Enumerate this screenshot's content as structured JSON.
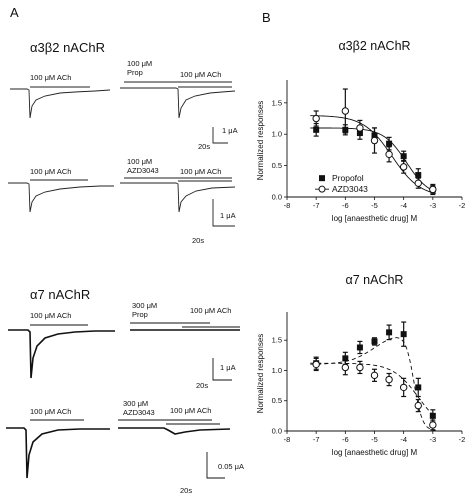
{
  "panel_labels": {
    "a": "A",
    "b": "B"
  },
  "traces": {
    "a3b2_title": "α3β2 nAChR",
    "a7_title": "α7 nAChR",
    "a3b2_prop": {
      "ach1": "100 μM ACh",
      "drug_line1": "100 μM",
      "drug_line2": "Prop",
      "ach2": "100 μM ACh",
      "scale_y": "1 μA",
      "scale_x": "20s"
    },
    "a3b2_azd": {
      "ach1": "100 μM ACh",
      "drug_line1": "100 μM",
      "drug_line2": "AZD3043",
      "ach2": "100 μM ACh",
      "scale_y": "1 μA",
      "scale_x": "20s"
    },
    "a7_prop": {
      "ach1": "100 μM ACh",
      "drug_line1": "300 μM",
      "drug_line2": "Prop",
      "ach2": "100 μM ACh",
      "scale_y": "1 μA",
      "scale_x": "20s"
    },
    "a7_azd": {
      "ach1": "100 μM ACh",
      "drug_line1": "300 μM",
      "drug_line2": "AZD3043",
      "ach2": "100 μM ACh",
      "scale_y": "0.05 μA",
      "scale_x": "20s"
    }
  },
  "chart_data": [
    {
      "type": "scatter",
      "title": "α3β2 nAChR",
      "xlabel": "log [anaesthetic drug] M",
      "ylabel": "Normalized responses",
      "xlim": [
        -8,
        -2
      ],
      "ylim": [
        0,
        1.8
      ],
      "xticks": [
        "-8",
        "-7",
        "-6",
        "-5",
        "-4",
        "-3",
        "-2"
      ],
      "yticks": [
        "0.0",
        "0.5",
        "1.0",
        "1.5"
      ],
      "legend": "bottom-left",
      "series": [
        {
          "name": "Propofol",
          "marker": "filled-square",
          "fit": "solid",
          "x": [
            -7,
            -6,
            -5.5,
            -5,
            -4.5,
            -4,
            -3.5,
            -3
          ],
          "y": [
            1.07,
            1.07,
            1.02,
            0.98,
            0.85,
            0.65,
            0.35,
            0.12
          ],
          "err": [
            0.1,
            0.08,
            0.1,
            0.12,
            0.1,
            0.08,
            0.1,
            0.08
          ]
        },
        {
          "name": "AZD3043",
          "marker": "open-circle",
          "fit": "solid",
          "x": [
            -7,
            -6,
            -5.5,
            -5,
            -4.5,
            -4,
            -3.5,
            -3
          ],
          "y": [
            1.25,
            1.37,
            1.1,
            0.9,
            0.68,
            0.48,
            0.22,
            0.12
          ],
          "err": [
            0.12,
            0.35,
            0.12,
            0.2,
            0.12,
            0.1,
            0.08,
            0.06
          ]
        }
      ]
    },
    {
      "type": "scatter",
      "title": "α7 nAChR",
      "xlabel": "log [anaesthetic drug] M",
      "ylabel": "Normalized responses",
      "xlim": [
        -8,
        -2
      ],
      "ylim": [
        0,
        1.9
      ],
      "xticks": [
        "-8",
        "-7",
        "-6",
        "-5",
        "-4",
        "-3",
        "-2"
      ],
      "yticks": [
        "0.0",
        "0.5",
        "1.0",
        "1.5"
      ],
      "series": [
        {
          "name": "Propofol",
          "marker": "filled-square",
          "fit": "dashed",
          "x": [
            -7,
            -6,
            -5.5,
            -5,
            -4.5,
            -4,
            -3.5,
            -3
          ],
          "y": [
            1.12,
            1.2,
            1.38,
            1.48,
            1.63,
            1.6,
            0.72,
            0.25
          ],
          "err": [
            0.1,
            0.1,
            0.1,
            0.06,
            0.12,
            0.2,
            0.15,
            0.1
          ]
        },
        {
          "name": "AZD3043",
          "marker": "open-circle",
          "fit": "dashed",
          "x": [
            -7,
            -6,
            -5.5,
            -5,
            -4.5,
            -4,
            -3.5,
            -3
          ],
          "y": [
            1.1,
            1.05,
            1.05,
            0.92,
            0.85,
            0.72,
            0.42,
            0.1
          ],
          "err": [
            0.1,
            0.12,
            0.1,
            0.1,
            0.1,
            0.15,
            0.1,
            0.08
          ]
        }
      ]
    }
  ]
}
